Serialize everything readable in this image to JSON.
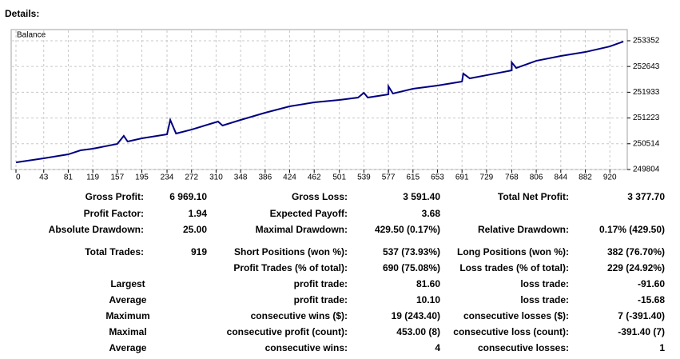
{
  "header": {
    "title": "Details:"
  },
  "chart_data": {
    "type": "line",
    "title": "Balance",
    "x": [
      0,
      43,
      81,
      100,
      119,
      157,
      167,
      173,
      195,
      234,
      239,
      248,
      272,
      313,
      320,
      348,
      386,
      424,
      462,
      501,
      530,
      539,
      545,
      577,
      577,
      584,
      615,
      653,
      691,
      693,
      703,
      729,
      768,
      768,
      775,
      806,
      844,
      882,
      920,
      941
    ],
    "series": [
      {
        "color": "#000080",
        "values": [
          250000,
          250112,
          250222,
          250333,
          250377,
          250509,
          250730,
          250575,
          250663,
          250773,
          251170,
          250795,
          250905,
          251126,
          251016,
          251170,
          251368,
          251544,
          251655,
          251720,
          251787,
          251919,
          251787,
          251875,
          252095,
          251897,
          252029,
          252117,
          252227,
          252447,
          252315,
          252403,
          252536,
          252756,
          252602,
          252800,
          252932,
          253042,
          253196,
          253330
        ]
      }
    ],
    "xlim": [
      0,
      947
    ],
    "xticks": [
      0,
      43,
      81,
      119,
      157,
      195,
      234,
      272,
      310,
      348,
      386,
      424,
      462,
      501,
      539,
      577,
      615,
      653,
      691,
      729,
      768,
      806,
      844,
      882,
      920
    ],
    "ylim": [
      249804,
      253660
    ],
    "yticks": [
      249804,
      250514,
      251223,
      251933,
      252643,
      253352
    ],
    "grid": true
  },
  "table": {
    "rows": [
      [
        "Gross Profit:",
        "6 969.10",
        "Gross Loss:",
        "3 591.40",
        "Total Net Profit:",
        "3 377.70"
      ],
      [
        "Profit Factor:",
        "1.94",
        "Expected Payoff:",
        "3.68",
        null,
        null
      ],
      [
        "Absolute Drawdown:",
        "25.00",
        "Maximal Drawdown:",
        "429.50 (0.17%)",
        "Relative Drawdown:",
        "0.17% (429.50)"
      ],
      [
        "Total Trades:",
        "919",
        "Short Positions (won %):",
        "537 (73.93%)",
        "Long Positions (won %):",
        "382 (76.70%)"
      ],
      [
        null,
        null,
        "Profit Trades (% of total):",
        "690 (75.08%)",
        "Loss trades (% of total):",
        "229 (24.92%)"
      ],
      [
        "Largest",
        null,
        "profit trade:",
        "81.60",
        "loss trade:",
        "-91.60"
      ],
      [
        "Average",
        null,
        "profit trade:",
        "10.10",
        "loss trade:",
        "-15.68"
      ],
      [
        "Maximum",
        null,
        "consecutive wins ($):",
        "19 (243.40)",
        "consecutive losses ($):",
        "7 (-391.40)"
      ],
      [
        "Maximal",
        null,
        "consecutive profit (count):",
        "453.00 (8)",
        "consecutive loss (count):",
        "-391.40 (7)"
      ],
      [
        "Average",
        null,
        "consecutive wins:",
        "4",
        "consecutive losses:",
        "1"
      ]
    ]
  }
}
